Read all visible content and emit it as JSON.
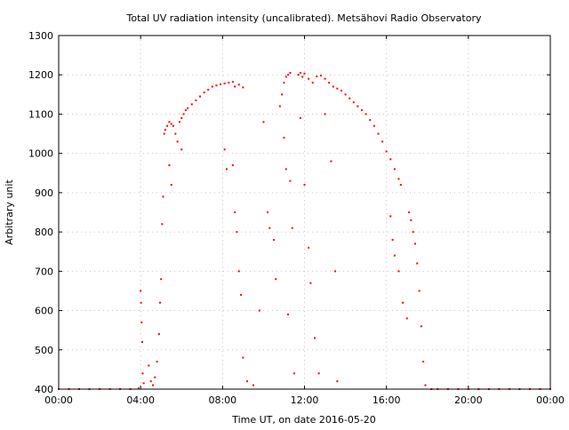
{
  "chart_data": {
    "type": "scatter",
    "title": "Total UV radiation intensity (uncalibrated). Metsähovi Radio Observatory",
    "xlabel": "Time UT, on date 2016-05-20",
    "ylabel": "Arbitrary unit",
    "xlim": [
      0,
      24
    ],
    "ylim": [
      400,
      1300
    ],
    "x_ticks": [
      {
        "value": 0,
        "label": "00:00"
      },
      {
        "value": 4,
        "label": "04:00"
      },
      {
        "value": 8,
        "label": "08:00"
      },
      {
        "value": 12,
        "label": "12:00"
      },
      {
        "value": 16,
        "label": "16:00"
      },
      {
        "value": 20,
        "label": "20:00"
      },
      {
        "value": 24,
        "label": "00:00"
      }
    ],
    "y_ticks": [
      400,
      500,
      600,
      700,
      800,
      900,
      1000,
      1100,
      1200,
      1300
    ],
    "grid": true,
    "marker_color": "#ff0000",
    "series": [
      {
        "points": [
          [
            0.0,
            400
          ],
          [
            0.5,
            400
          ],
          [
            1.0,
            400
          ],
          [
            1.5,
            400
          ],
          [
            2.0,
            400
          ],
          [
            2.5,
            400
          ],
          [
            3.0,
            400
          ],
          [
            3.5,
            400
          ],
          [
            3.9,
            402
          ],
          [
            4.0,
            650
          ],
          [
            4.02,
            620
          ],
          [
            4.05,
            570
          ],
          [
            4.08,
            520
          ],
          [
            4.1,
            440
          ],
          [
            4.15,
            415
          ],
          [
            4.4,
            460
          ],
          [
            4.5,
            420
          ],
          [
            4.6,
            410
          ],
          [
            4.7,
            430
          ],
          [
            4.8,
            470
          ],
          [
            4.9,
            540
          ],
          [
            4.95,
            620
          ],
          [
            5.0,
            680
          ],
          [
            5.05,
            820
          ],
          [
            5.1,
            890
          ],
          [
            5.15,
            1050
          ],
          [
            5.2,
            1060
          ],
          [
            5.3,
            1070
          ],
          [
            5.4,
            1080
          ],
          [
            5.5,
            1075
          ],
          [
            5.6,
            1070
          ],
          [
            5.7,
            1050
          ],
          [
            5.8,
            1030
          ],
          [
            5.9,
            1080
          ],
          [
            6.0,
            1090
          ],
          [
            6.1,
            1100
          ],
          [
            6.2,
            1110
          ],
          [
            6.3,
            1115
          ],
          [
            6.5,
            1125
          ],
          [
            6.7,
            1135
          ],
          [
            6.9,
            1145
          ],
          [
            7.1,
            1155
          ],
          [
            7.3,
            1162
          ],
          [
            7.5,
            1170
          ],
          [
            7.7,
            1173
          ],
          [
            7.9,
            1176
          ],
          [
            8.1,
            1178
          ],
          [
            8.3,
            1180
          ],
          [
            8.5,
            1182
          ],
          [
            8.6,
            1170
          ],
          [
            8.8,
            1175
          ],
          [
            9.0,
            1168
          ],
          [
            5.4,
            970
          ],
          [
            5.5,
            920
          ],
          [
            6.0,
            1010
          ],
          [
            8.1,
            1010
          ],
          [
            8.2,
            960
          ],
          [
            8.5,
            970
          ],
          [
            8.6,
            850
          ],
          [
            8.7,
            800
          ],
          [
            8.8,
            700
          ],
          [
            8.9,
            640
          ],
          [
            9.0,
            480
          ],
          [
            9.2,
            420
          ],
          [
            9.5,
            410
          ],
          [
            9.8,
            600
          ],
          [
            10.0,
            1080
          ],
          [
            10.2,
            850
          ],
          [
            10.3,
            810
          ],
          [
            10.5,
            780
          ],
          [
            10.6,
            680
          ],
          [
            10.8,
            1120
          ],
          [
            10.9,
            1150
          ],
          [
            11.0,
            1180
          ],
          [
            11.1,
            1195
          ],
          [
            11.2,
            1200
          ],
          [
            11.3,
            1205
          ],
          [
            11.0,
            1040
          ],
          [
            11.1,
            960
          ],
          [
            11.2,
            590
          ],
          [
            11.3,
            930
          ],
          [
            11.4,
            810
          ],
          [
            11.5,
            440
          ],
          [
            11.7,
            1200
          ],
          [
            11.8,
            1205
          ],
          [
            11.9,
            1195
          ],
          [
            12.0,
            1203
          ],
          [
            12.2,
            1190
          ],
          [
            12.4,
            1180
          ],
          [
            12.6,
            1196
          ],
          [
            12.8,
            1198
          ],
          [
            13.0,
            1190
          ],
          [
            13.2,
            1180
          ],
          [
            13.4,
            1170
          ],
          [
            13.6,
            1165
          ],
          [
            13.8,
            1160
          ],
          [
            14.0,
            1150
          ],
          [
            14.2,
            1140
          ],
          [
            14.4,
            1130
          ],
          [
            14.6,
            1120
          ],
          [
            14.8,
            1110
          ],
          [
            15.0,
            1100
          ],
          [
            15.2,
            1085
          ],
          [
            15.4,
            1070
          ],
          [
            15.6,
            1050
          ],
          [
            15.8,
            1030
          ],
          [
            16.0,
            1005
          ],
          [
            16.2,
            985
          ],
          [
            16.4,
            960
          ],
          [
            16.6,
            935
          ],
          [
            16.7,
            920
          ],
          [
            11.8,
            1090
          ],
          [
            12.0,
            920
          ],
          [
            12.2,
            760
          ],
          [
            12.3,
            670
          ],
          [
            12.5,
            530
          ],
          [
            12.7,
            440
          ],
          [
            13.0,
            1100
          ],
          [
            13.3,
            980
          ],
          [
            13.5,
            700
          ],
          [
            13.6,
            420
          ],
          [
            16.2,
            840
          ],
          [
            16.3,
            780
          ],
          [
            16.4,
            740
          ],
          [
            16.6,
            700
          ],
          [
            16.8,
            620
          ],
          [
            17.0,
            580
          ],
          [
            17.1,
            850
          ],
          [
            17.2,
            830
          ],
          [
            17.3,
            800
          ],
          [
            17.4,
            770
          ],
          [
            17.5,
            720
          ],
          [
            17.6,
            650
          ],
          [
            17.7,
            560
          ],
          [
            17.8,
            470
          ],
          [
            17.9,
            410
          ],
          [
            18.2,
            400
          ],
          [
            18.5,
            400
          ],
          [
            19.0,
            400
          ],
          [
            19.5,
            400
          ],
          [
            20.0,
            400
          ],
          [
            20.5,
            400
          ],
          [
            21.0,
            400
          ],
          [
            21.5,
            400
          ],
          [
            22.0,
            400
          ],
          [
            22.5,
            400
          ],
          [
            23.0,
            400
          ],
          [
            23.5,
            400
          ],
          [
            24.0,
            400
          ]
        ]
      }
    ]
  }
}
